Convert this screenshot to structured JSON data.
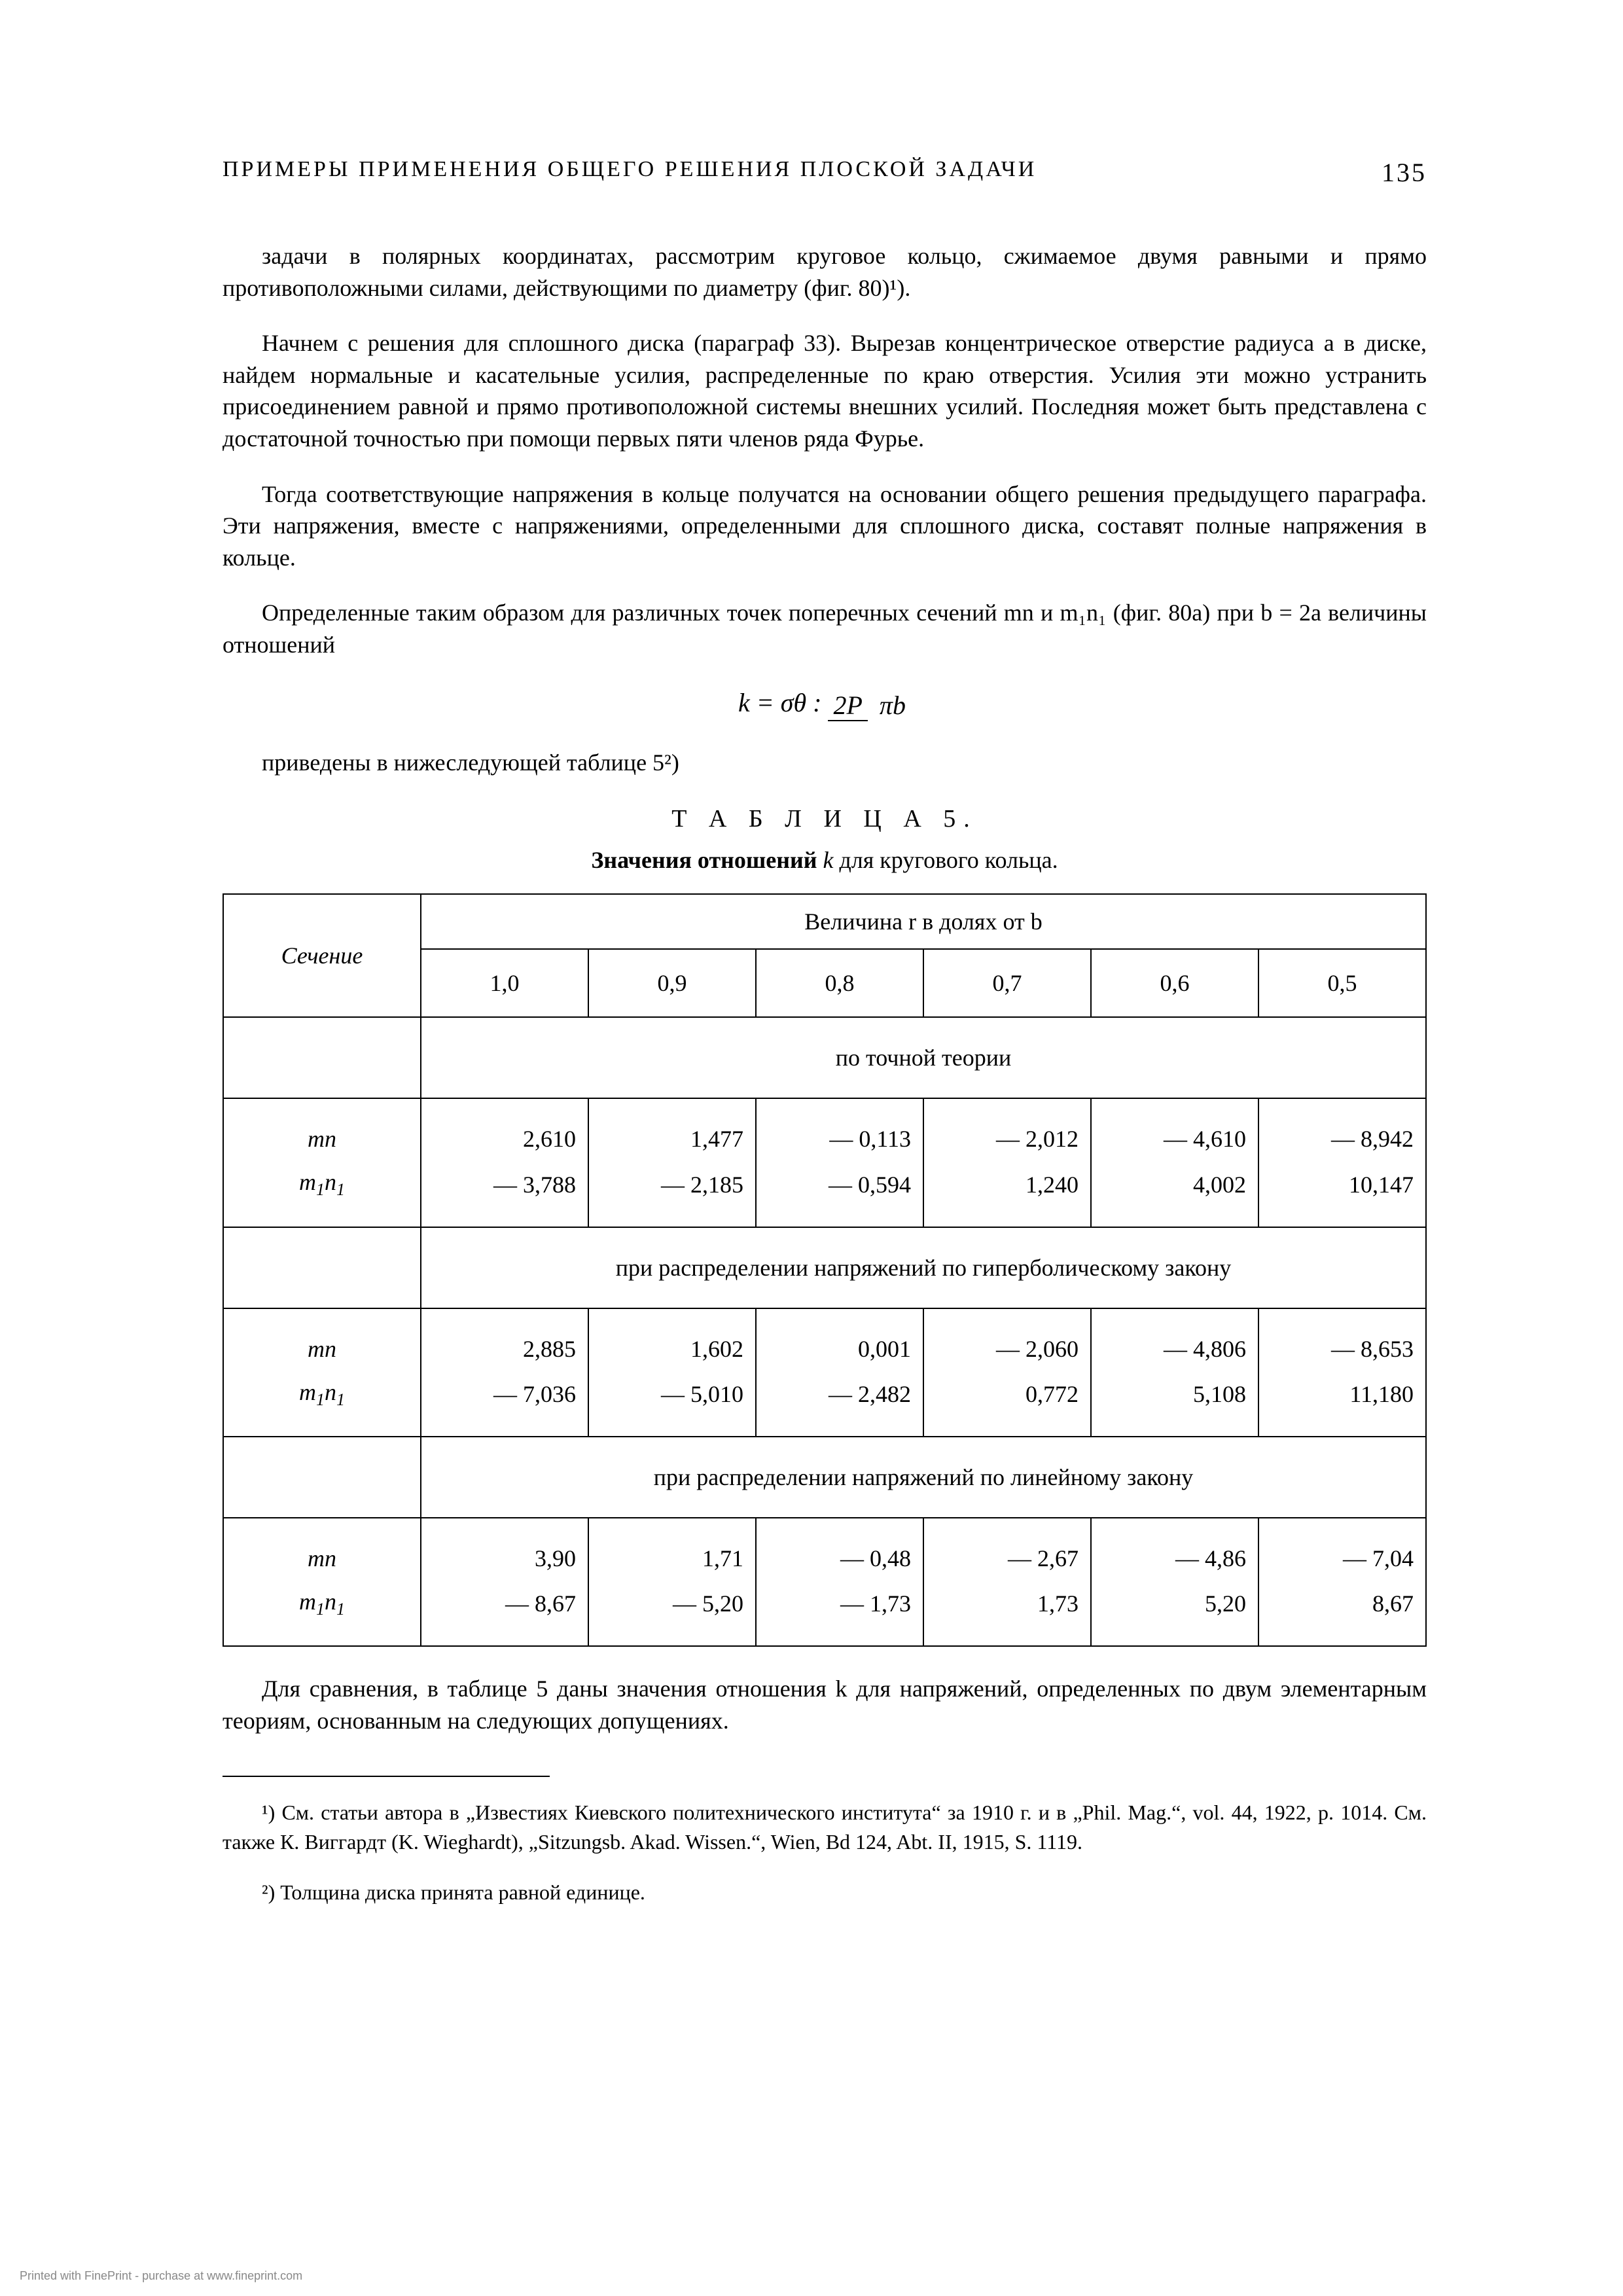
{
  "header": {
    "title": "ПРИМЕРЫ ПРИМЕНЕНИЯ ОБЩЕГО РЕШЕНИЯ ПЛОСКОЙ ЗАДАЧИ",
    "page_number": "135"
  },
  "paragraphs": {
    "p1": "задачи в полярных координатах, рассмотрим круговое кольцо, сжимаемое двумя равными и прямо противоположными силами, действующими по диаметру (фиг. 80)¹).",
    "p2": "Начнем с решения для сплошного диска (параграф 33). Вырезав концентрическое отверстие радиуса a в диске, найдем нормальные и касательные усилия, распределенные по краю отверстия. Усилия эти можно устранить присоединением равной и прямо противоположной системы внешних усилий. Последняя может быть представлена с достаточной точностью при помощи первых пяти членов ряда Фурье.",
    "p3": "Тогда соответствующие напряжения в кольце получатся на основании общего решения предыдущего параграфа. Эти напряжения, вместе с напряжениями, определенными для сплошного диска, составят полные напряжения в кольце.",
    "p4": "Определенные таким образом для различных точек поперечных сечений mn и m₁n₁ (фиг. 80a) при b = 2a величины отношений",
    "p5": "приведены в нижеследующей таблице 5²)",
    "p6": "Для сравнения, в таблице 5 даны значения отношения k для напряжений, определенных по двум элементарным теориям, основанным на следующих допущениях."
  },
  "formula": {
    "lhs": "k = σθ :",
    "num": "2P",
    "den": "πb"
  },
  "table": {
    "title": "Т А Б Л И Ц А  5.",
    "subtitle_bold": "Значения отношений",
    "subtitle_ital": "k",
    "subtitle_rest": "для кругового кольца.",
    "section_label": "Сечение",
    "span_header": "Величина r в долях от b",
    "columns": [
      "1,0",
      "0,9",
      "0,8",
      "0,7",
      "0,6",
      "0,5"
    ],
    "theory_headers": {
      "exact": "по точной теории",
      "hyperbolic": "при распределении напряжений по гиперболическому закону",
      "linear": "при распределении напряжений по линейному закону"
    },
    "row_labels": {
      "mn": "mn",
      "m1n1": "m₁n₁"
    },
    "data": {
      "exact": {
        "mn": [
          "2,610",
          "1,477",
          "— 0,113",
          "— 2,012",
          "— 4,610",
          "— 8,942"
        ],
        "m1n1": [
          "— 3,788",
          "— 2,185",
          "— 0,594",
          "1,240",
          "4,002",
          "10,147"
        ]
      },
      "hyperbolic": {
        "mn": [
          "2,885",
          "1,602",
          "0,001",
          "— 2,060",
          "— 4,806",
          "— 8,653"
        ],
        "m1n1": [
          "— 7,036",
          "— 5,010",
          "— 2,482",
          "0,772",
          "5,108",
          "11,180"
        ]
      },
      "linear": {
        "mn": [
          "3,90",
          "1,71",
          "— 0,48",
          "— 2,67",
          "— 4,86",
          "— 7,04"
        ],
        "m1n1": [
          "— 8,67",
          "— 5,20",
          "— 1,73",
          "1,73",
          "5,20",
          "8,67"
        ]
      }
    }
  },
  "footnotes": {
    "f1": "¹) См. статьи автора в „Известиях Киевского политехнического института“ за 1910 г. и в „Phil. Mag.“, vol. 44, 1922, p. 1014. См. также К. Виггардт (K. Wieghardt), „Sitzungsb. Akad. Wissen.“, Wien, Bd 124, Abt. II, 1915, S. 1119.",
    "f2": "²) Толщина диска принята равной единице."
  },
  "fine_print": "Printed with FinePrint - purchase at www.fineprint.com"
}
